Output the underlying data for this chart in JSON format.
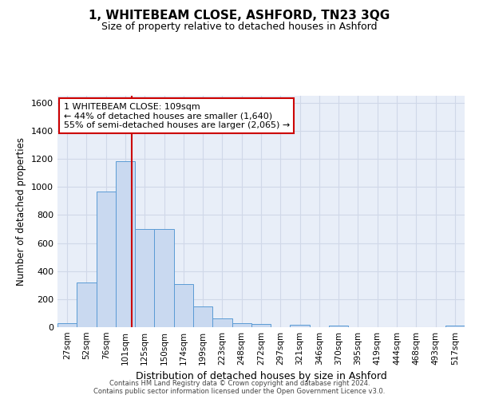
{
  "title": "1, WHITEBEAM CLOSE, ASHFORD, TN23 3QG",
  "subtitle": "Size of property relative to detached houses in Ashford",
  "xlabel": "Distribution of detached houses by size in Ashford",
  "ylabel": "Number of detached properties",
  "categories": [
    "27sqm",
    "52sqm",
    "76sqm",
    "101sqm",
    "125sqm",
    "150sqm",
    "174sqm",
    "199sqm",
    "223sqm",
    "248sqm",
    "272sqm",
    "297sqm",
    "321sqm",
    "346sqm",
    "370sqm",
    "395sqm",
    "419sqm",
    "444sqm",
    "468sqm",
    "493sqm",
    "517sqm"
  ],
  "values": [
    30,
    320,
    970,
    1185,
    700,
    700,
    305,
    150,
    65,
    30,
    20,
    0,
    15,
    0,
    10,
    0,
    0,
    0,
    0,
    0,
    10
  ],
  "bar_color": "#c9d9f0",
  "bar_edge_color": "#5b9bd5",
  "property_label": "1 WHITEBEAM CLOSE: 109sqm",
  "annotation_line1": "← 44% of detached houses are smaller (1,640)",
  "annotation_line2": "55% of semi-detached houses are larger (2,065) →",
  "vline_color": "#cc0000",
  "annotation_box_color": "#ffffff",
  "annotation_box_edge": "#cc0000",
  "ylim": [
    0,
    1650
  ],
  "yticks": [
    0,
    200,
    400,
    600,
    800,
    1000,
    1200,
    1400,
    1600
  ],
  "grid_color": "#d0d8e8",
  "bg_color": "#e8eef8",
  "title_fontsize": 11,
  "subtitle_fontsize": 9,
  "footer1": "Contains HM Land Registry data © Crown copyright and database right 2024.",
  "footer2": "Contains public sector information licensed under the Open Government Licence v3.0."
}
